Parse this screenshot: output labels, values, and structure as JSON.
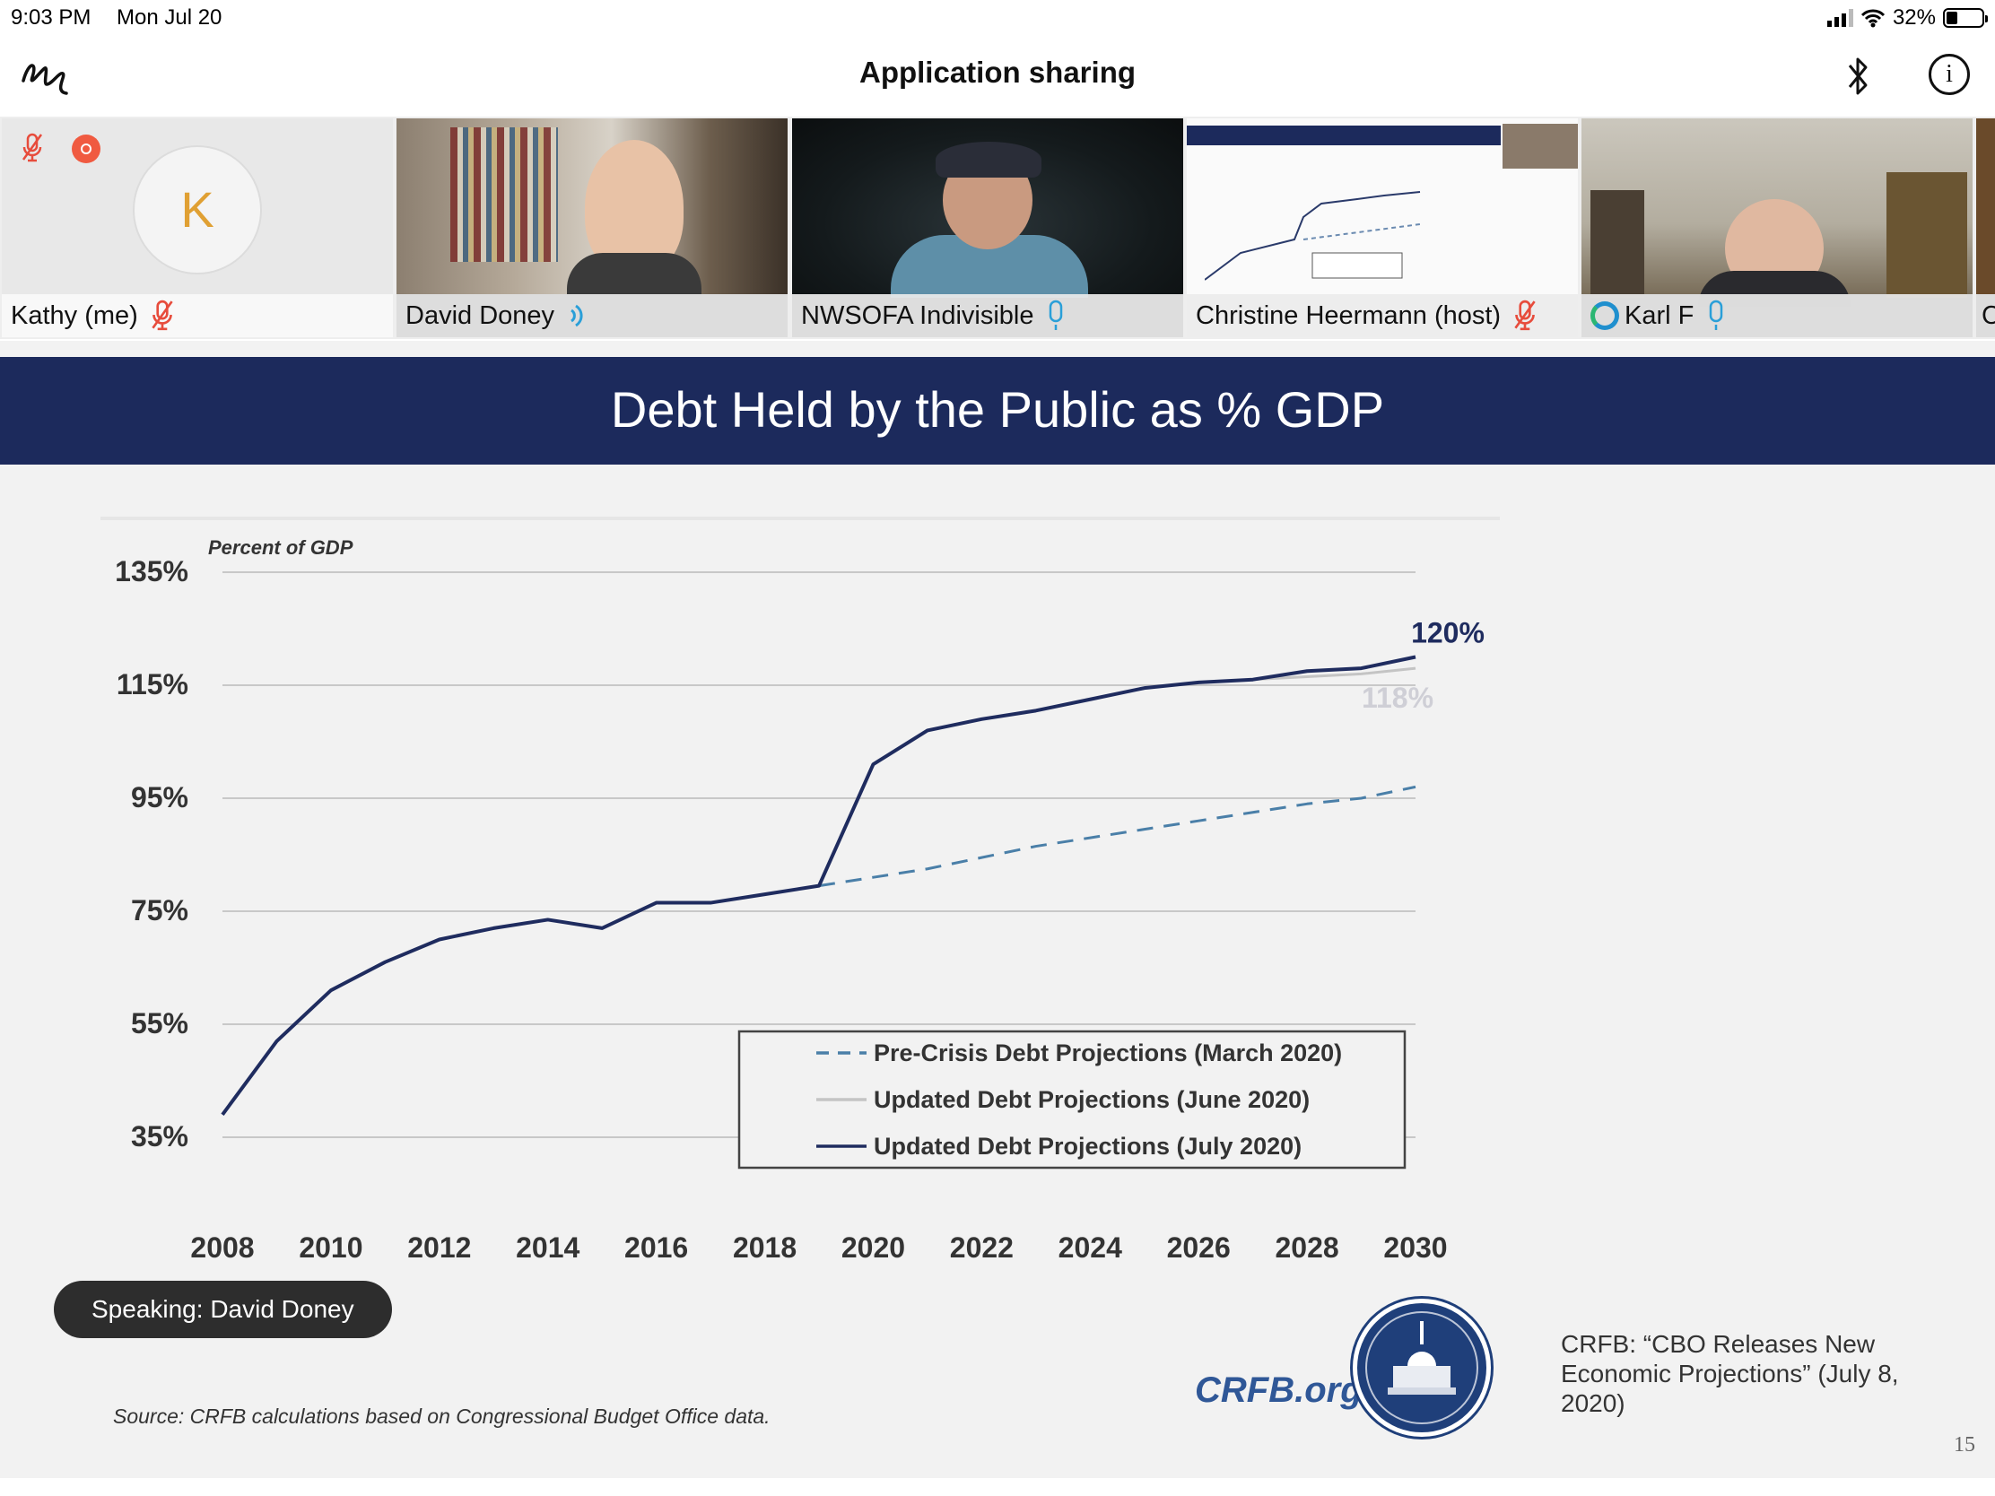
{
  "status_bar": {
    "time": "9:03 PM",
    "date": "Mon Jul 20",
    "battery": "32%"
  },
  "title_bar": {
    "title": "Application sharing",
    "icons": [
      "annotate-icon",
      "bluetooth-icon",
      "info-icon"
    ]
  },
  "participants": [
    {
      "name": "Kathy (me)",
      "initial": "K",
      "status": "muted"
    },
    {
      "name": "David Doney",
      "status": "speaking"
    },
    {
      "name": "NWSOFA Indivisible",
      "status": "unmuted"
    },
    {
      "name": "Christine Heermann (host)",
      "status": "muted"
    },
    {
      "name": "Karl F",
      "status": "unmuted"
    },
    {
      "name": "C",
      "status": "unknown"
    }
  ],
  "colors": {
    "banner": "#1c2a5c",
    "series_july": "#1f2c5f",
    "series_march": "#4a7fa8",
    "series_june": "#c4c4c4",
    "muted": "#e74c3c",
    "mic": "#2a9fd8"
  },
  "speaking": "Speaking: David Doney",
  "slide": {
    "page_number": "15",
    "source": "Source: CRFB calculations based on Congressional Budget Office data.",
    "logo_text": "CRFB.org",
    "citation": "CRFB:  “CBO Releases New Economic Projections” (July 8, 2020)"
  },
  "chart_data": {
    "type": "line",
    "title": "Debt Held by the Public as % GDP",
    "ylabel": "Percent of GDP",
    "xlim": [
      2008,
      2030
    ],
    "ylim": [
      35,
      135
    ],
    "yticks": [
      "35%",
      "55%",
      "75%",
      "95%",
      "115%",
      "135%"
    ],
    "xticks": [
      "2008",
      "2010",
      "2012",
      "2014",
      "2016",
      "2018",
      "2020",
      "2022",
      "2024",
      "2026",
      "2028",
      "2030"
    ],
    "grid": true,
    "legend_position": "bottom-center",
    "annotations": [
      {
        "text": "120%",
        "series": "Updated Debt Projections (July 2020)"
      },
      {
        "text": "118%",
        "series": "Updated Debt Projections (June 2020)"
      }
    ],
    "series": [
      {
        "name": "Updated Debt Projections (July 2020)",
        "style": "solid",
        "x": [
          2008,
          2009,
          2010,
          2011,
          2012,
          2013,
          2014,
          2015,
          2016,
          2017,
          2018,
          2019,
          2020,
          2021,
          2022,
          2023,
          2024,
          2025,
          2026,
          2027,
          2028,
          2029,
          2030
        ],
        "y": [
          39,
          52,
          61,
          66,
          70,
          72,
          73.5,
          72,
          76.5,
          76.5,
          78,
          79.5,
          101,
          107,
          109,
          110.5,
          112.5,
          114.5,
          115.5,
          116,
          117.5,
          118,
          120
        ]
      },
      {
        "name": "Updated Debt Projections (June 2020)",
        "style": "solid",
        "x": [
          2019,
          2020,
          2021,
          2022,
          2023,
          2024,
          2025,
          2026,
          2027,
          2028,
          2029,
          2030
        ],
        "y": [
          79.5,
          101,
          107,
          109,
          110.5,
          112.5,
          114.5,
          115.5,
          116,
          116.5,
          117,
          118
        ]
      },
      {
        "name": "Pre-Crisis Debt Projections (March 2020)",
        "style": "dashed",
        "x": [
          2019,
          2020,
          2021,
          2022,
          2023,
          2024,
          2025,
          2026,
          2027,
          2028,
          2029,
          2030
        ],
        "y": [
          79.5,
          81,
          82.5,
          84.5,
          86.5,
          88,
          89.5,
          91,
          92.5,
          94,
          95,
          97
        ]
      }
    ]
  }
}
